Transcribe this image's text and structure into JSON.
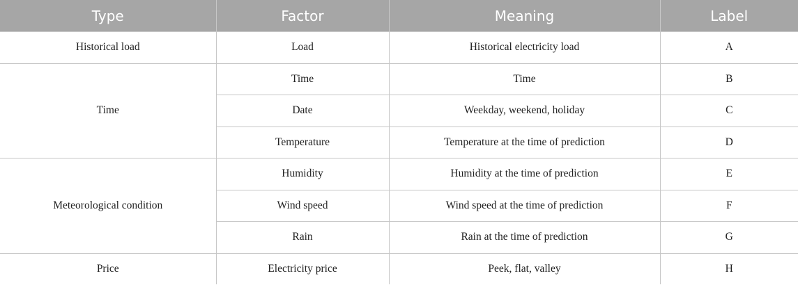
{
  "table": {
    "headers": [
      "Type",
      "Factor",
      "Meaning",
      "Label"
    ],
    "groups": [
      {
        "type": "Historical load"
      },
      {
        "type": "Time"
      },
      {
        "type": "Meteorological condition"
      },
      {
        "type": "Price"
      }
    ],
    "rows": [
      {
        "factor": "Load",
        "meaning": "Historical electricity load",
        "label": "A"
      },
      {
        "factor": "Time",
        "meaning": "Time",
        "label": "B"
      },
      {
        "factor": "Date",
        "meaning": "Weekday, weekend, holiday",
        "label": "C"
      },
      {
        "factor": "Temperature",
        "meaning": "Temperature at the time of prediction",
        "label": "D"
      },
      {
        "factor": "Humidity",
        "meaning": "Humidity at the time of prediction",
        "label": "E"
      },
      {
        "factor": "Wind speed",
        "meaning": "Wind speed at the time of prediction",
        "label": "F"
      },
      {
        "factor": "Rain",
        "meaning": "Rain at the time of prediction",
        "label": "G"
      },
      {
        "factor": "Electricity price",
        "meaning": "Peek, flat, valley",
        "label": "H"
      }
    ]
  }
}
